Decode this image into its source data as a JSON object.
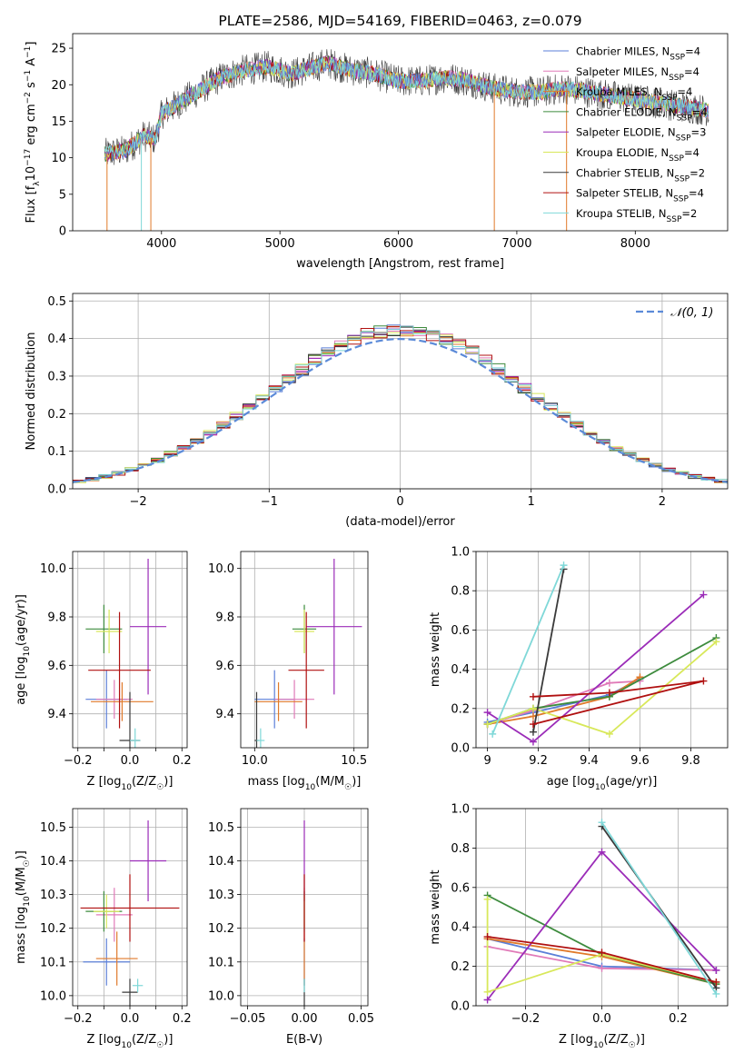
{
  "colors": {
    "chab_miles": "#5b7fd8",
    "salp_miles": "#e07ab8",
    "krou_miles": "#e07a2a",
    "chab_elodie": "#3d8b3d",
    "salp_elodie": "#9b2cb8",
    "krou_elodie": "#d8e85a",
    "chab_stelib": "#3a3a3a",
    "salp_stelib": "#b01010",
    "krou_stelib": "#7fd8d8"
  },
  "chart_data": [
    {
      "id": "spectrum",
      "type": "line",
      "title": "PLATE=2586, MJD=54169, FIBERID=0463, z=0.079",
      "xlabel": "wavelength [Angstrom, rest frame]",
      "ylabel_pre": "Flux [f",
      "ylabel_sub": "λ",
      "ylabel_mid": "10",
      "ylabel_sup1": "−17",
      "ylabel_mid2": " erg cm",
      "ylabel_sup2": "−2",
      "ylabel_mid3": " s",
      "ylabel_sup3": "−1",
      "ylabel_end": " A",
      "ylabel_sup4": "−1",
      "ylabel_close": "]",
      "xlim": [
        3250,
        8780
      ],
      "ylim": [
        0,
        27
      ],
      "xticks": [
        4000,
        5000,
        6000,
        7000,
        8000
      ],
      "yticks": [
        0,
        5,
        10,
        15,
        20,
        25
      ],
      "legend": [
        {
          "pre": "Chabrier MILES, N",
          "sub": "SSP",
          "post": "=4",
          "color": "chab_miles"
        },
        {
          "pre": "Salpeter MILES, N",
          "sub": "SSP",
          "post": "=4",
          "color": "salp_miles"
        },
        {
          "pre": "Kroupa MILES, N",
          "sub": "SSP",
          "post": "=4",
          "color": "krou_miles"
        },
        {
          "pre": "Chabrier ELODIE, N",
          "sub": "SSP",
          "post": "=4",
          "color": "chab_elodie"
        },
        {
          "pre": "Salpeter ELODIE, N",
          "sub": "SSP",
          "post": "=3",
          "color": "salp_elodie"
        },
        {
          "pre": "Kroupa ELODIE, N",
          "sub": "SSP",
          "post": "=4",
          "color": "krou_elodie"
        },
        {
          "pre": "Chabrier STELIB, N",
          "sub": "SSP",
          "post": "=2",
          "color": "chab_stelib"
        },
        {
          "pre": "Salpeter STELIB, N",
          "sub": "SSP",
          "post": "=4",
          "color": "salp_stelib"
        },
        {
          "pre": "Kroupa STELIB, N",
          "sub": "SSP",
          "post": "=2",
          "color": "krou_stelib"
        }
      ],
      "continuum": [
        [
          3520,
          10.5
        ],
        [
          3700,
          11
        ],
        [
          3850,
          13
        ],
        [
          3950,
          12.5
        ],
        [
          4000,
          16
        ],
        [
          4100,
          17
        ],
        [
          4300,
          19
        ],
        [
          4500,
          21
        ],
        [
          4700,
          22
        ],
        [
          4900,
          22.5
        ],
        [
          5100,
          21.5
        ],
        [
          5200,
          22
        ],
        [
          5400,
          23
        ],
        [
          5600,
          22
        ],
        [
          5800,
          21.5
        ],
        [
          6000,
          20.5
        ],
        [
          6200,
          20.5
        ],
        [
          6400,
          21
        ],
        [
          6600,
          20.5
        ],
        [
          6800,
          19.5
        ],
        [
          7000,
          19
        ],
        [
          7200,
          19
        ],
        [
          7400,
          19.5
        ],
        [
          7600,
          19
        ],
        [
          7800,
          18.5
        ],
        [
          8000,
          18
        ],
        [
          8200,
          17.5
        ],
        [
          8400,
          17
        ],
        [
          8600,
          16.5
        ]
      ],
      "drops": [
        {
          "x": 3540,
          "color": "krou_miles"
        },
        {
          "x": 3830,
          "color": "krou_stelib"
        },
        {
          "x": 3910,
          "color": "krou_miles"
        },
        {
          "x": 6810,
          "color": "krou_miles"
        },
        {
          "x": 7420,
          "color": "krou_miles"
        }
      ]
    },
    {
      "id": "residuals",
      "type": "bar",
      "xlabel": "(data-model)/error",
      "ylabel": "Normed distribution",
      "xlim": [
        -2.5,
        2.5
      ],
      "ylim": [
        0,
        0.52
      ],
      "xticks": [
        -2,
        -1,
        0,
        1,
        2
      ],
      "yticks": [
        0.0,
        0.1,
        0.2,
        0.3,
        0.4,
        0.5
      ],
      "bin_width": 0.1,
      "legend_label": "𝒩(0, 1)",
      "legend_color": "#5b8ad8"
    },
    {
      "id": "age_vs_Z",
      "type": "scatter",
      "xlabel_pre": "Z [log",
      "xlabel_sub": "10",
      "xlabel_post": "(Z/Z",
      "xlabel_sub2": "☉",
      "xlabel_end": ")]",
      "ylabel_pre": "age  [log",
      "ylabel_sub": "10",
      "ylabel_post": "(age/yr)]",
      "xlim": [
        -0.22,
        0.22
      ],
      "ylim": [
        9.26,
        10.07
      ],
      "xticks": [
        -0.2,
        -0.1,
        0.0,
        0.1,
        0.2
      ],
      "xticklabels": [
        "−0.2",
        "",
        "0.0",
        "",
        "0.2"
      ],
      "yticks": [
        9.4,
        9.6,
        9.8,
        10.0
      ],
      "points": [
        {
          "x": -0.09,
          "xe": 0.08,
          "y": 9.46,
          "ye": 0.12,
          "c": "chab_miles"
        },
        {
          "x": -0.06,
          "xe": 0.07,
          "y": 9.46,
          "ye": 0.08,
          "c": "salp_miles"
        },
        {
          "x": -0.03,
          "xe": 0.12,
          "y": 9.45,
          "ye": 0.08,
          "c": "krou_miles"
        },
        {
          "x": -0.1,
          "xe": 0.07,
          "y": 9.75,
          "ye": 0.1,
          "c": "chab_elodie"
        },
        {
          "x": 0.07,
          "xe": 0.07,
          "y": 9.76,
          "ye": 0.28,
          "c": "salp_elodie"
        },
        {
          "x": -0.08,
          "xe": 0.05,
          "y": 9.74,
          "ye": 0.09,
          "c": "krou_elodie"
        },
        {
          "x": 0.0,
          "xe": 0.04,
          "y": 9.29,
          "ye": 0.2,
          "c": "chab_stelib"
        },
        {
          "x": -0.04,
          "xe": 0.12,
          "y": 9.58,
          "ye": 0.24,
          "c": "salp_stelib"
        },
        {
          "x": 0.02,
          "xe": 0.02,
          "y": 9.29,
          "ye": 0.05,
          "c": "krou_stelib"
        }
      ]
    },
    {
      "id": "age_vs_mass",
      "type": "scatter",
      "xlabel_pre": "mass [log",
      "xlabel_sub": "10",
      "xlabel_post": "(M/M",
      "xlabel_sub2": "☉",
      "xlabel_end": ")]",
      "xlim": [
        9.93,
        10.57
      ],
      "ylim": [
        9.26,
        10.07
      ],
      "xticks": [
        10.0,
        10.5
      ],
      "xticklabels": [
        "10.0",
        "10.5"
      ],
      "yticks": [
        9.4,
        9.6,
        9.8,
        10.0
      ],
      "points": [
        {
          "x": 10.1,
          "xe": 0.1,
          "y": 9.46,
          "ye": 0.12,
          "c": "chab_miles"
        },
        {
          "x": 10.2,
          "xe": 0.1,
          "y": 9.46,
          "ye": 0.08,
          "c": "salp_miles"
        },
        {
          "x": 10.12,
          "xe": 0.12,
          "y": 9.45,
          "ye": 0.08,
          "c": "krou_miles"
        },
        {
          "x": 10.25,
          "xe": 0.06,
          "y": 9.75,
          "ye": 0.1,
          "c": "chab_elodie"
        },
        {
          "x": 10.4,
          "xe": 0.14,
          "y": 9.76,
          "ye": 0.28,
          "c": "salp_elodie"
        },
        {
          "x": 10.25,
          "xe": 0.05,
          "y": 9.74,
          "ye": 0.09,
          "c": "krou_elodie"
        },
        {
          "x": 10.01,
          "xe": 0.01,
          "y": 9.29,
          "ye": 0.2,
          "c": "chab_stelib"
        },
        {
          "x": 10.26,
          "xe": 0.09,
          "y": 9.58,
          "ye": 0.24,
          "c": "salp_stelib"
        },
        {
          "x": 10.03,
          "xe": 0.02,
          "y": 9.29,
          "ye": 0.05,
          "c": "krou_stelib"
        }
      ]
    },
    {
      "id": "weight_vs_age",
      "type": "line",
      "xlabel_pre": "age  [log",
      "xlabel_sub": "10",
      "xlabel_post": "(age/yr)]",
      "ylabel": "mass weight",
      "xlim": [
        8.955,
        9.945
      ],
      "ylim": [
        0,
        1
      ],
      "xticks": [
        9.0,
        9.2,
        9.4,
        9.6,
        9.8
      ],
      "yticks": [
        0.0,
        0.2,
        0.4,
        0.6,
        0.8,
        1.0
      ],
      "series": [
        {
          "c": "chab_miles",
          "x": [
            9.0,
            9.18,
            9.48,
            9.6
          ],
          "y": [
            0.13,
            0.18,
            0.27,
            0.35
          ]
        },
        {
          "c": "salp_miles",
          "x": [
            9.0,
            9.18,
            9.48,
            9.6
          ],
          "y": [
            0.12,
            0.19,
            0.33,
            0.34
          ]
        },
        {
          "c": "krou_miles",
          "x": [
            9.0,
            9.18,
            9.48,
            9.6
          ],
          "y": [
            0.12,
            0.16,
            0.26,
            0.36
          ]
        },
        {
          "c": "chab_elodie",
          "x": [
            9.0,
            9.18,
            9.48,
            9.9
          ],
          "y": [
            0.12,
            0.2,
            0.26,
            0.56
          ]
        },
        {
          "c": "salp_elodie",
          "x": [
            9.0,
            9.18,
            9.85
          ],
          "y": [
            0.18,
            0.03,
            0.78
          ]
        },
        {
          "c": "krou_elodie",
          "x": [
            9.0,
            9.18,
            9.48,
            9.9
          ],
          "y": [
            0.12,
            0.2,
            0.07,
            0.54
          ]
        },
        {
          "c": "chab_stelib",
          "x": [
            9.18,
            9.3
          ],
          "y": [
            0.08,
            0.91
          ]
        },
        {
          "c": "salp_stelib",
          "x": [
            9.18,
            9.48,
            9.85,
            9.18
          ],
          "y": [
            0.26,
            0.28,
            0.34,
            0.12
          ]
        },
        {
          "c": "krou_stelib",
          "x": [
            9.02,
            9.3
          ],
          "y": [
            0.07,
            0.93
          ]
        }
      ]
    },
    {
      "id": "mass_vs_Z",
      "type": "scatter",
      "xlabel_pre": "Z [log",
      "xlabel_sub": "10",
      "xlabel_post": "(Z/Z",
      "xlabel_sub2": "☉",
      "xlabel_end": ")]",
      "ylabel_pre": "mass [log",
      "ylabel_sub": "10",
      "ylabel_post": "(M/M",
      "ylabel_sub2": "☉",
      "ylabel_end": ")]",
      "xlim": [
        -0.22,
        0.22
      ],
      "ylim": [
        9.97,
        10.555
      ],
      "xticks": [
        -0.2,
        -0.1,
        0.0,
        0.1,
        0.2
      ],
      "xticklabels": [
        "−0.2",
        "",
        "0.0",
        "",
        "0.2"
      ],
      "yticks": [
        10.0,
        10.1,
        10.2,
        10.3,
        10.4,
        10.5
      ],
      "points": [
        {
          "x": -0.09,
          "xe": 0.09,
          "y": 10.1,
          "ye": 0.07,
          "c": "chab_miles"
        },
        {
          "x": -0.06,
          "xe": 0.07,
          "y": 10.24,
          "ye": 0.08,
          "c": "salp_miles"
        },
        {
          "x": -0.05,
          "xe": 0.08,
          "y": 10.11,
          "ye": 0.08,
          "c": "krou_miles"
        },
        {
          "x": -0.1,
          "xe": 0.07,
          "y": 10.25,
          "ye": 0.06,
          "c": "chab_elodie"
        },
        {
          "x": 0.07,
          "xe": 0.07,
          "y": 10.4,
          "ye": 0.12,
          "c": "salp_elodie"
        },
        {
          "x": -0.09,
          "xe": 0.05,
          "y": 10.25,
          "ye": 0.05,
          "c": "krou_elodie"
        },
        {
          "x": 0.0,
          "xe": 0.03,
          "y": 10.01,
          "ye": 0.04,
          "c": "chab_stelib"
        },
        {
          "x": 0.0,
          "xe": 0.19,
          "y": 10.26,
          "ye": 0.1,
          "c": "salp_stelib"
        },
        {
          "x": 0.03,
          "xe": 0.02,
          "y": 10.03,
          "ye": 0.02,
          "c": "krou_stelib"
        }
      ]
    },
    {
      "id": "mass_vs_ebv",
      "type": "scatter",
      "xlabel": "E(B-V)",
      "xlim": [
        -0.056,
        0.056
      ],
      "ylim": [
        9.97,
        10.555
      ],
      "xticks": [
        -0.05,
        0.0,
        0.05
      ],
      "xticklabels": [
        "−0.05",
        "0.00",
        "0.05"
      ],
      "yticks": [
        10.0,
        10.1,
        10.2,
        10.3,
        10.4,
        10.5
      ],
      "points": [
        {
          "x": 0,
          "xe": 0,
          "y": 10.1,
          "ye": 0.07,
          "c": "chab_miles"
        },
        {
          "x": 0,
          "xe": 0,
          "y": 10.24,
          "ye": 0.08,
          "c": "salp_miles"
        },
        {
          "x": 0,
          "xe": 0,
          "y": 10.11,
          "ye": 0.08,
          "c": "krou_miles"
        },
        {
          "x": 0,
          "xe": 0,
          "y": 10.25,
          "ye": 0.06,
          "c": "chab_elodie"
        },
        {
          "x": 0,
          "xe": 0,
          "y": 10.4,
          "ye": 0.12,
          "c": "salp_elodie"
        },
        {
          "x": 0,
          "xe": 0,
          "y": 10.25,
          "ye": 0.05,
          "c": "krou_elodie"
        },
        {
          "x": 0,
          "xe": 0,
          "y": 10.01,
          "ye": 0.04,
          "c": "chab_stelib"
        },
        {
          "x": 0,
          "xe": 0,
          "y": 10.26,
          "ye": 0.1,
          "c": "salp_stelib"
        },
        {
          "x": 0,
          "xe": 0,
          "y": 10.03,
          "ye": 0.02,
          "c": "krou_stelib"
        }
      ]
    },
    {
      "id": "weight_vs_Z",
      "type": "line",
      "xlabel_pre": "Z [log",
      "xlabel_sub": "10",
      "xlabel_post": "(Z/Z",
      "xlabel_sub2": "☉",
      "xlabel_end": ")]",
      "ylabel": "mass weight",
      "xlim": [
        -0.33,
        0.33
      ],
      "ylim": [
        0,
        1
      ],
      "xticks": [
        -0.2,
        0.0,
        0.2
      ],
      "xticklabels": [
        "−0.2",
        "0.0",
        "0.2"
      ],
      "yticks": [
        0.0,
        0.2,
        0.4,
        0.6,
        0.8,
        1.0
      ],
      "series": [
        {
          "c": "chab_miles",
          "x": [
            -0.3,
            0.0,
            0.3
          ],
          "y": [
            0.34,
            0.2,
            0.18
          ]
        },
        {
          "c": "salp_miles",
          "x": [
            -0.3,
            0.0,
            0.3
          ],
          "y": [
            0.3,
            0.19,
            0.18
          ]
        },
        {
          "c": "krou_miles",
          "x": [
            -0.3,
            0.0,
            0.3
          ],
          "y": [
            0.34,
            0.25,
            0.11
          ]
        },
        {
          "c": "chab_elodie",
          "x": [
            -0.3,
            0.0,
            0.3
          ],
          "y": [
            0.56,
            0.26,
            0.11
          ]
        },
        {
          "c": "salp_elodie",
          "x": [
            -0.3,
            0.0,
            0.3
          ],
          "y": [
            0.03,
            0.78,
            0.18
          ]
        },
        {
          "c": "krou_elodie",
          "x": [
            -0.3,
            -0.3,
            0.0,
            0.3
          ],
          "y": [
            0.54,
            0.07,
            0.26,
            0.12
          ]
        },
        {
          "c": "chab_stelib",
          "x": [
            0.0,
            0.3
          ],
          "y": [
            0.91,
            0.09
          ]
        },
        {
          "c": "salp_stelib",
          "x": [
            -0.3,
            0.0,
            0.3
          ],
          "y": [
            0.35,
            0.27,
            0.12
          ]
        },
        {
          "c": "krou_stelib",
          "x": [
            0.0,
            0.3
          ],
          "y": [
            0.93,
            0.06
          ]
        }
      ]
    }
  ]
}
